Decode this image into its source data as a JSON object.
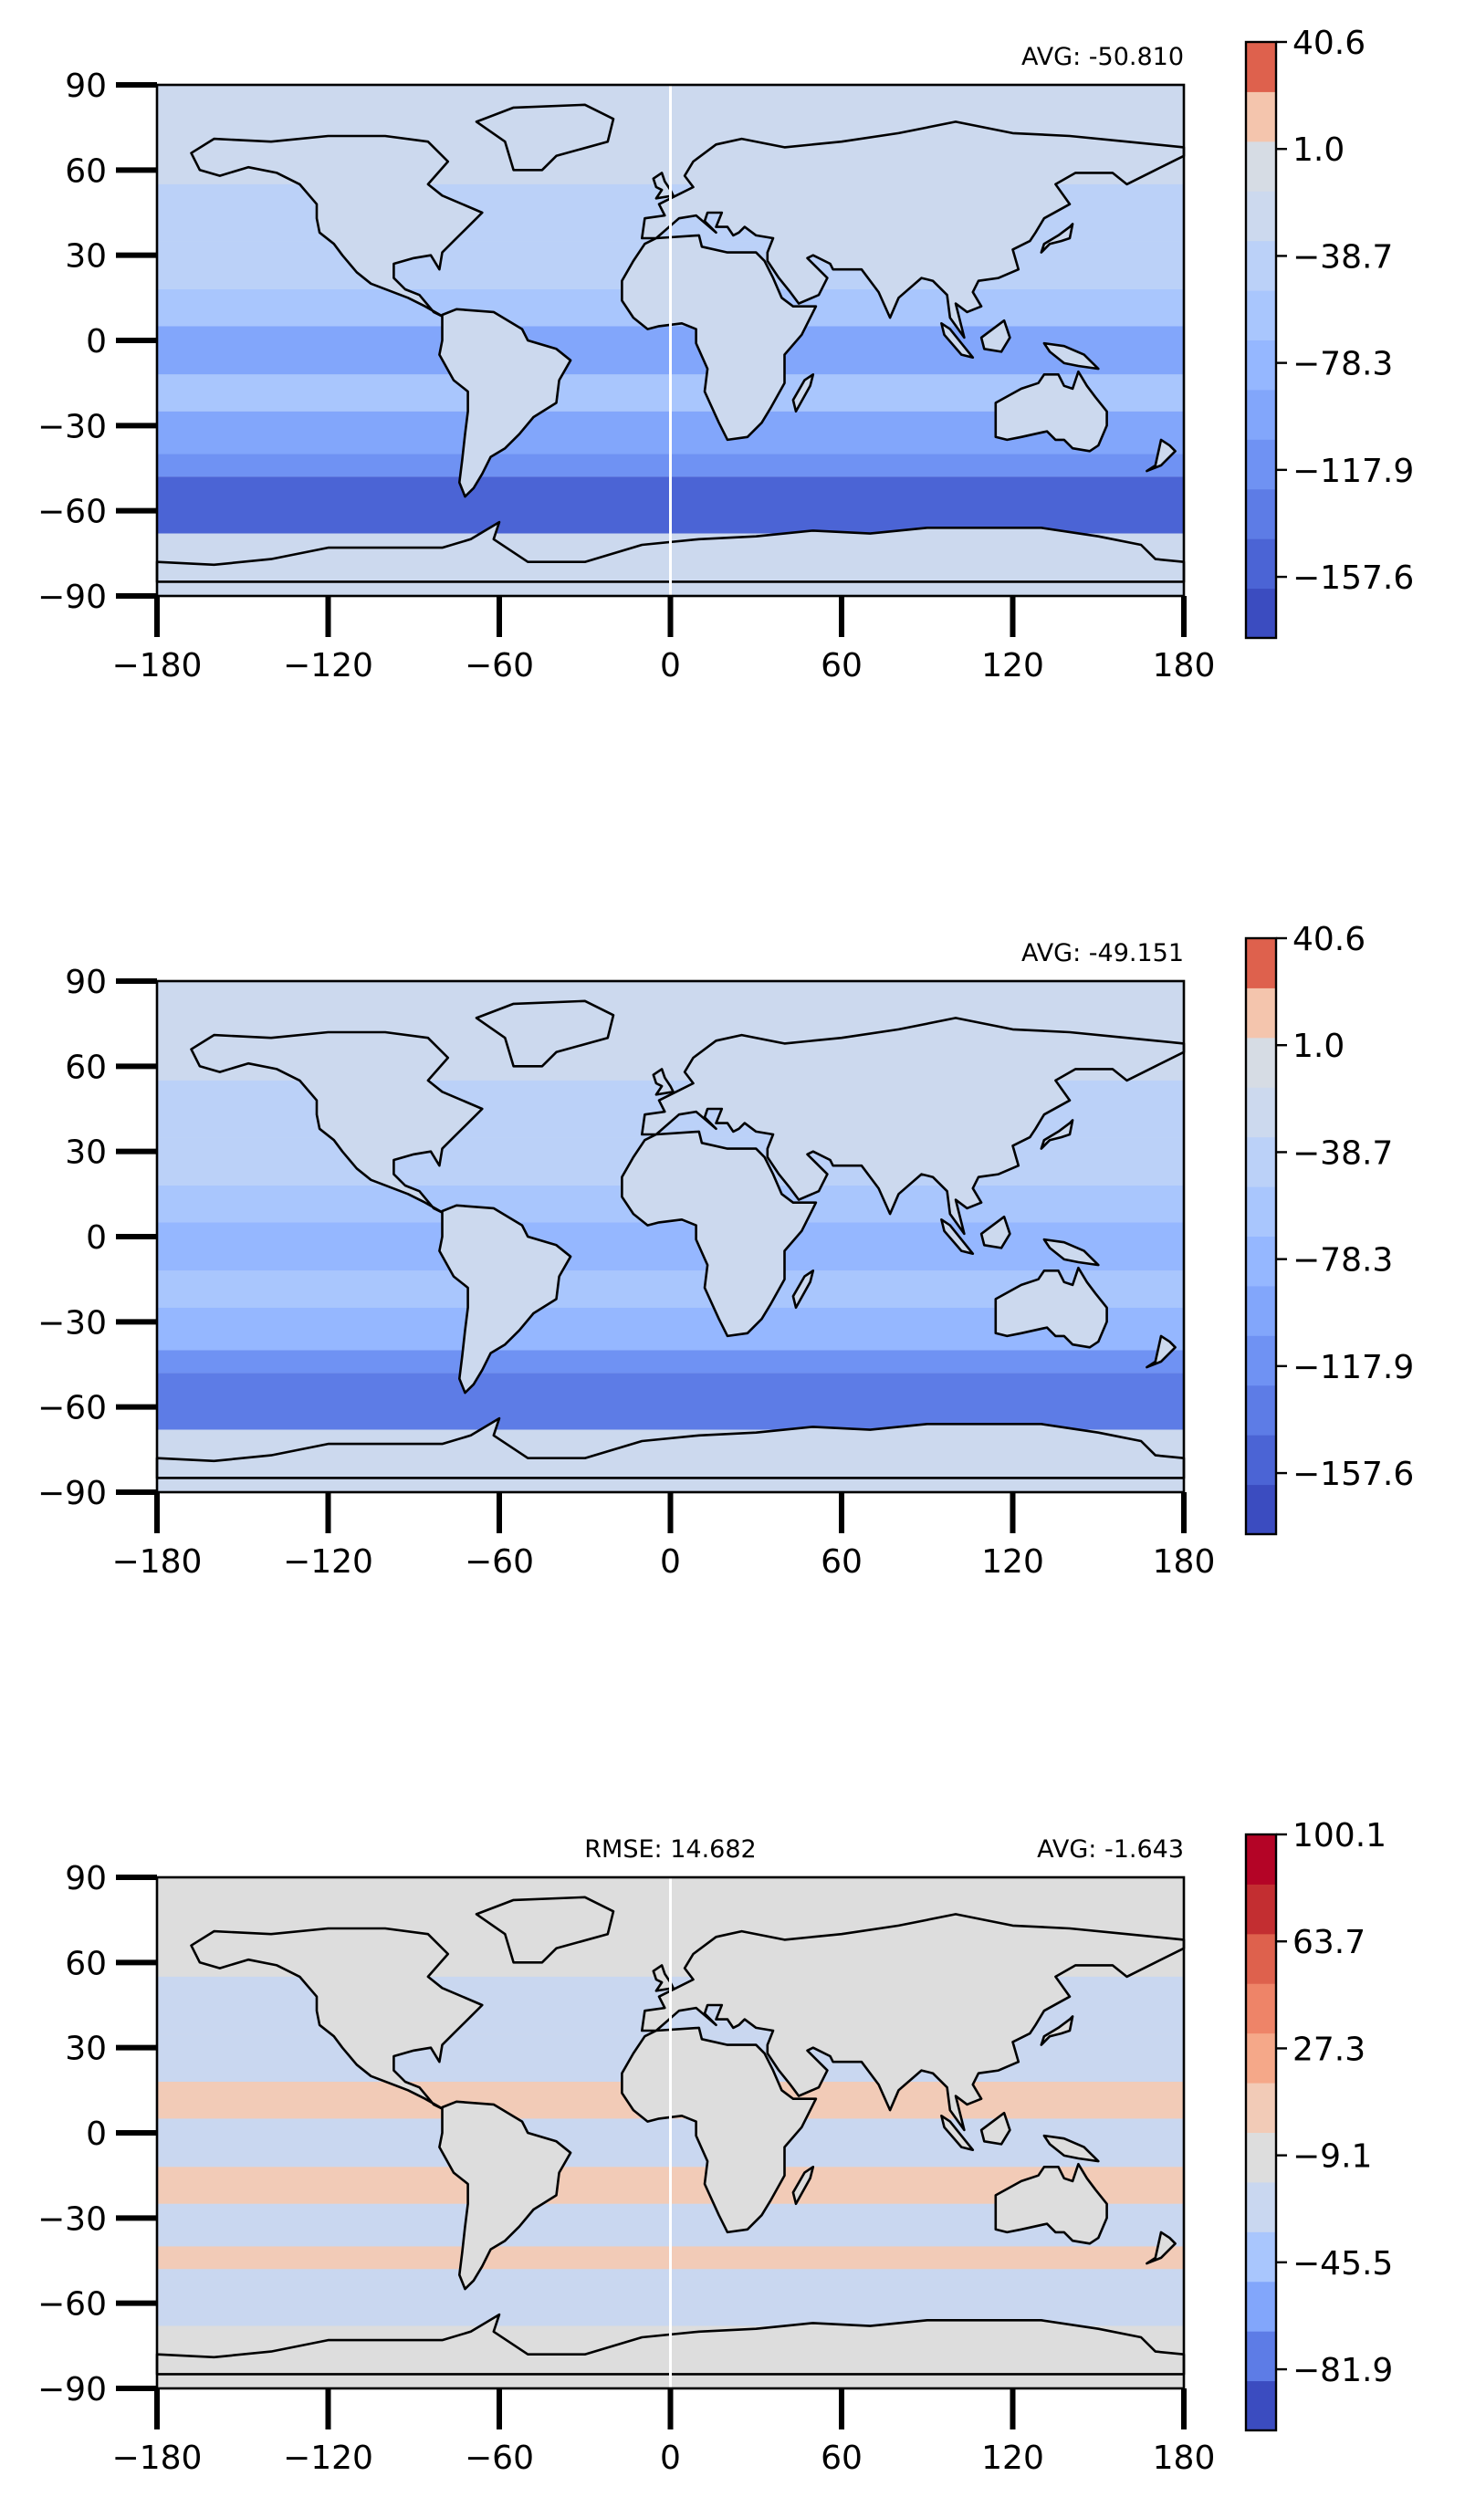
{
  "panels": [
    {
      "avg_label": "AVG: -50.810",
      "rmse_label": "",
      "colorbar_ticks": [
        "40.6",
        "1.0",
        "−38.7",
        "−78.3",
        "−117.9",
        "−157.6"
      ],
      "colorbar_colors": [
        "#3b4cc0",
        "#4b64d5",
        "#5d7ce6",
        "#6f92f3",
        "#82a6fb",
        "#95b7ff",
        "#a9c6fd",
        "#bbd1f8",
        "#ccd9ee",
        "#d6dce4",
        "#f4c5ad",
        "#de614d"
      ],
      "fill": "#ccd9ee",
      "ocean_bands": [
        "#ccd9ee",
        "#bbd1f8",
        "#a9c6fd",
        "#82a6fb",
        "#6f92f3",
        "#4b64d5"
      ],
      "meridian_line": true
    },
    {
      "avg_label": "AVG: -49.151",
      "rmse_label": "",
      "colorbar_ticks": [
        "40.6",
        "1.0",
        "−38.7",
        "−78.3",
        "−117.9",
        "−157.6"
      ],
      "colorbar_colors": [
        "#3b4cc0",
        "#4b64d5",
        "#5d7ce6",
        "#6f92f3",
        "#82a6fb",
        "#95b7ff",
        "#a9c6fd",
        "#bbd1f8",
        "#ccd9ee",
        "#d6dce4",
        "#f4c5ad",
        "#de614d"
      ],
      "fill": "#ccd9ee",
      "ocean_bands": [
        "#ccd9ee",
        "#bbd1f8",
        "#a9c6fd",
        "#95b7ff",
        "#6f92f3",
        "#5d7ce6"
      ],
      "meridian_line": false
    },
    {
      "avg_label": "AVG: -1.643",
      "rmse_label": "RMSE: 14.682",
      "colorbar_ticks": [
        "100.1",
        "63.7",
        "27.3",
        "−9.1",
        "−45.5",
        "−81.9"
      ],
      "colorbar_colors": [
        "#3b4cc0",
        "#5d7ce6",
        "#82a6fb",
        "#a9c6fd",
        "#c9d7f0",
        "#dddddd",
        "#f2cbb7",
        "#f5a889",
        "#ee8468",
        "#de614d",
        "#c32e31",
        "#b40426"
      ],
      "fill": "#dddddd",
      "ocean_bands": [
        "#dddddd",
        "#c9d7f0",
        "#f2cbb7",
        "#c9d7f0",
        "#f2cbb7",
        "#c9d7f0"
      ],
      "meridian_line": true
    }
  ],
  "axes": {
    "x_ticks": [
      "−180",
      "−120",
      "−60",
      "0",
      "60",
      "120",
      "180"
    ],
    "y_ticks": [
      "90",
      "60",
      "30",
      "0",
      "−30",
      "−60",
      "−90"
    ],
    "x_values": [
      -180,
      -120,
      -60,
      0,
      60,
      120,
      180
    ],
    "y_values": [
      90,
      60,
      30,
      0,
      -30,
      -60,
      -90
    ]
  },
  "colors": {
    "coastline": "#000000",
    "meridian": "#ffffff"
  }
}
